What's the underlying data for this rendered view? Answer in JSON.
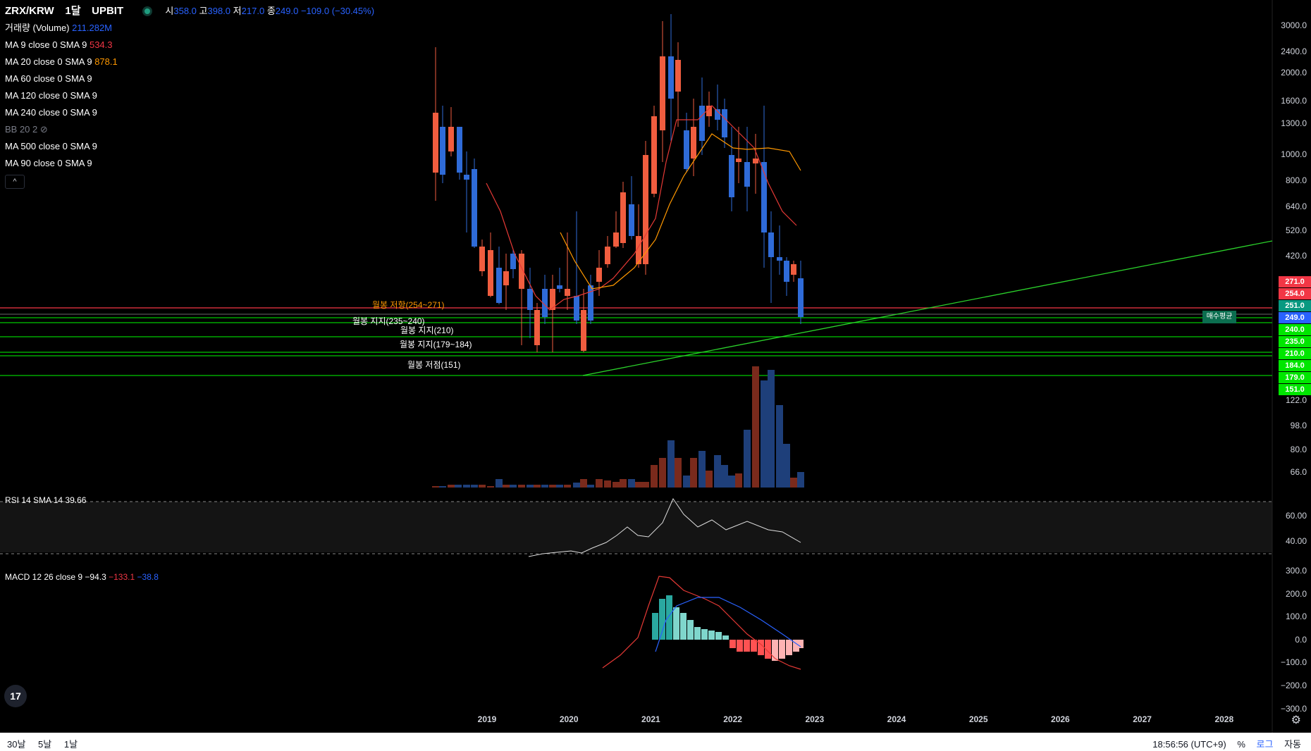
{
  "header": {
    "symbol": "ZRX/KRW",
    "interval": "1달",
    "exchange": "UPBIT",
    "open_label": "시",
    "open": "358.0",
    "high_label": "고",
    "high": "398.0",
    "low_label": "저",
    "low": "217.0",
    "close_label": "종",
    "close": "249.0",
    "change": "−109.0 (−30.45%)"
  },
  "indicators": {
    "volume_label": "거래량 (Volume)",
    "volume_value": "211.282M",
    "ma9_label": "MA 9 close 0 SMA 9",
    "ma9_value": "534.3",
    "ma20_label": "MA 20 close 0 SMA 9",
    "ma20_value": "878.1",
    "ma60_label": "MA 60 close 0 SMA 9",
    "ma120_label": "MA 120 close 0 SMA 9",
    "ma240_label": "MA 240 close 0 SMA 9",
    "bb_label": "BB 20 2",
    "ma500_label": "MA 500 close 0 SMA 9",
    "ma90_label": "MA 90 close 0 SMA 9",
    "collapse_icon": "^"
  },
  "rsi": {
    "label": "RSI 14 SMA 14",
    "value": "39.66"
  },
  "macd": {
    "label": "MACD 12 26 close 9",
    "macd": "−94.3",
    "signal": "−133.1",
    "hist": "−38.8"
  },
  "annotations": {
    "resistance": "월봉 저항(254~271)",
    "support1": "월봉 지지(235~240)",
    "support2": "월봉 지지(210)",
    "support3": "월봉 지지(179~184)",
    "low": "월봉 저점(151)",
    "avg_box": "매수평균"
  },
  "price_axis": [
    "3000.0",
    "2400.0",
    "2000.0",
    "1600.0",
    "1300.0",
    "1000.0",
    "800.0",
    "640.0",
    "520.0",
    "420.0",
    "122.0",
    "98.0",
    "80.0",
    "66.0"
  ],
  "price_tags": [
    {
      "text": "271.0",
      "color": "#f23645"
    },
    {
      "text": "254.0",
      "color": "#f23645"
    },
    {
      "text": "251.0",
      "color": "#089981"
    },
    {
      "text": "249.0",
      "color": "#2962ff"
    },
    {
      "text": "240.0",
      "color": "#00e600"
    },
    {
      "text": "235.0",
      "color": "#00e600"
    },
    {
      "text": "210.0",
      "color": "#00e600"
    },
    {
      "text": "184.0",
      "color": "#00e600"
    },
    {
      "text": "179.0",
      "color": "#00e600"
    },
    {
      "text": "151.0",
      "color": "#00e600"
    }
  ],
  "rsi_axis": [
    "60.00",
    "40.00"
  ],
  "macd_axis": [
    "300.0",
    "200.0",
    "100.0",
    "0.0",
    "−100.0",
    "−200.0",
    "−300.0"
  ],
  "time_axis": [
    "2019",
    "2020",
    "2021",
    "2022",
    "2023",
    "2024",
    "2025",
    "2026",
    "2027",
    "2028"
  ],
  "bottom": {
    "range_30d": "30날",
    "range_5d": "5날",
    "range_1d": "1날",
    "clock": "18:56:56 (UTC+9)",
    "percent": "%",
    "log": "로그",
    "auto": "자동"
  },
  "colors": {
    "up": "#f05d3f",
    "down": "#2f6bd8",
    "ma9": "#e53935",
    "ma20": "#ff9800",
    "support": "#00c800",
    "resistance": "#f23645"
  }
}
